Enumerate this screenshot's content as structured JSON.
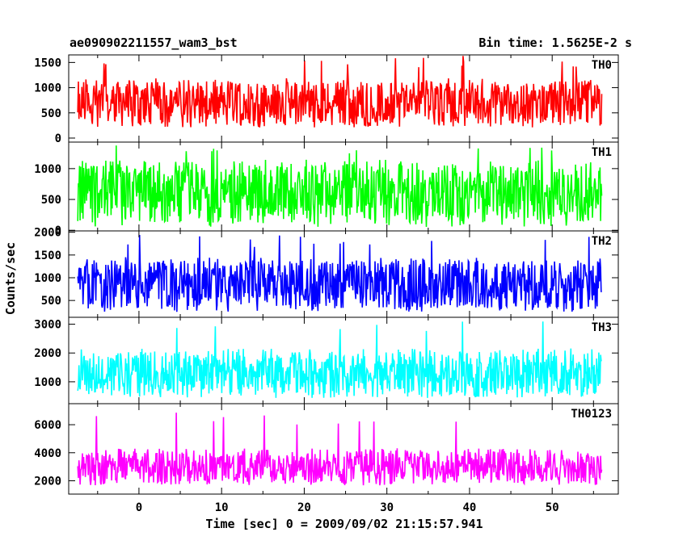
{
  "header": {
    "title": "ae090902211557_wam3_bst",
    "bin_time": "Bin time: 1.5625E-2 s"
  },
  "chart_data": {
    "type": "line",
    "title": "ae090902211557_wam3_bst",
    "subtitle": "Bin time: 1.5625E-2 s",
    "xlabel": "Time [sec] 0 = 2009/09/02 21:15:57.941",
    "ylabel": "Counts/sec",
    "xlim": [
      -8.5,
      58
    ],
    "x_ticks": [
      0,
      10,
      20,
      30,
      40,
      50
    ],
    "x_range_data": [
      -7.4,
      56.0
    ],
    "grid": false,
    "panels": [
      {
        "name": "TH0",
        "color": "#ff0000",
        "ylim": [
          -80,
          1650
        ],
        "yticks": [
          0,
          500,
          1000,
          1500
        ],
        "typical_min": 300,
        "typical_max": 1150,
        "mean": 700,
        "peak": 1650
      },
      {
        "name": "TH1",
        "color": "#00ff00",
        "ylim": [
          -10,
          1430
        ],
        "yticks": [
          0,
          500,
          1000
        ],
        "typical_min": 150,
        "typical_max": 1100,
        "mean": 600,
        "peak": 1400
      },
      {
        "name": "TH2",
        "color": "#0000ff",
        "ylim": [
          130,
          2030
        ],
        "yticks": [
          500,
          1000,
          1500,
          2000
        ],
        "typical_min": 350,
        "typical_max": 1400,
        "mean": 850,
        "peak": 1950
      },
      {
        "name": "TH3",
        "color": "#00ffff",
        "ylim": [
          240,
          3240
        ],
        "yticks": [
          1000,
          2000,
          3000
        ],
        "typical_min": 600,
        "typical_max": 2100,
        "mean": 1300,
        "peak": 3100
      },
      {
        "name": "TH0123",
        "color": "#ff00ff",
        "ylim": [
          1050,
          7500
        ],
        "yticks": [
          2000,
          4000,
          6000
        ],
        "typical_min": 2000,
        "typical_max": 4300,
        "mean": 3000,
        "peak": 6900
      }
    ]
  }
}
